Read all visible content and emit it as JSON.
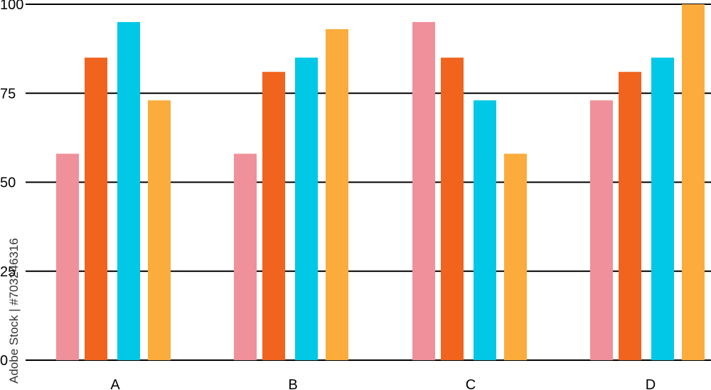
{
  "chart_data": {
    "type": "bar",
    "categories": [
      "A",
      "B",
      "C",
      "D"
    ],
    "series": [
      {
        "color": "#F0909A",
        "values": [
          58,
          58,
          95,
          73
        ]
      },
      {
        "color": "#F0641E",
        "values": [
          85,
          81,
          85,
          81
        ]
      },
      {
        "color": "#00C8E6",
        "values": [
          95,
          85,
          73,
          85
        ]
      },
      {
        "color": "#FBAC3C",
        "values": [
          73,
          93,
          58,
          100
        ]
      }
    ],
    "yticks": [
      "0",
      "25",
      "50",
      "75",
      "100"
    ],
    "ylim": [
      0,
      100
    ],
    "grid": true,
    "legend": "none"
  },
  "watermark": {
    "text": "Adobe Stock | #703246316"
  }
}
